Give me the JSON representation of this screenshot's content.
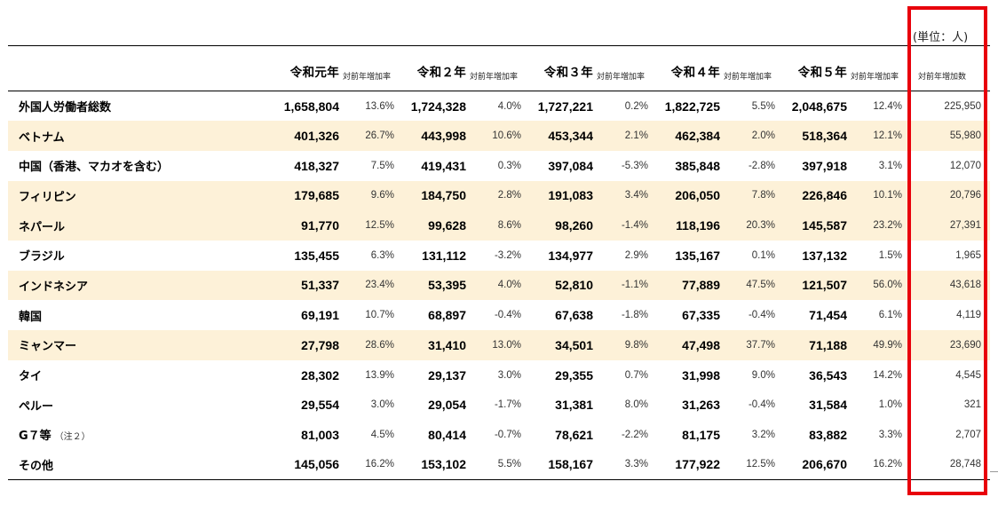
{
  "unit_label": "(単位：人)",
  "header": {
    "years": [
      "令和元年",
      "令和２年",
      "令和３年",
      "令和４年",
      "令和５年"
    ],
    "growth_label": "対前年増加率",
    "increase_label": "対前年増加数"
  },
  "rows": [
    {
      "label": "外国人労働者総数",
      "note": "",
      "values": [
        "1,658,804",
        "13.6%",
        "1,724,328",
        "4.0%",
        "1,727,221",
        "0.2%",
        "1,822,725",
        "5.5%",
        "2,048,675",
        "12.4%",
        "225,950"
      ]
    },
    {
      "label": "ベトナム",
      "note": "",
      "values": [
        "401,326",
        "26.7%",
        "443,998",
        "10.6%",
        "453,344",
        "2.1%",
        "462,384",
        "2.0%",
        "518,364",
        "12.1%",
        "55,980"
      ]
    },
    {
      "label": "中国（香港、マカオを含む）",
      "note": "",
      "values": [
        "418,327",
        "7.5%",
        "419,431",
        "0.3%",
        "397,084",
        "-5.3%",
        "385,848",
        "-2.8%",
        "397,918",
        "3.1%",
        "12,070"
      ]
    },
    {
      "label": "フィリピン",
      "note": "",
      "values": [
        "179,685",
        "9.6%",
        "184,750",
        "2.8%",
        "191,083",
        "3.4%",
        "206,050",
        "7.8%",
        "226,846",
        "10.1%",
        "20,796"
      ]
    },
    {
      "label": "ネパール",
      "note": "",
      "values": [
        "91,770",
        "12.5%",
        "99,628",
        "8.6%",
        "98,260",
        "-1.4%",
        "118,196",
        "20.3%",
        "145,587",
        "23.2%",
        "27,391"
      ]
    },
    {
      "label": "ブラジル",
      "note": "",
      "values": [
        "135,455",
        "6.3%",
        "131,112",
        "-3.2%",
        "134,977",
        "2.9%",
        "135,167",
        "0.1%",
        "137,132",
        "1.5%",
        "1,965"
      ]
    },
    {
      "label": "インドネシア",
      "note": "",
      "values": [
        "51,337",
        "23.4%",
        "53,395",
        "4.0%",
        "52,810",
        "-1.1%",
        "77,889",
        "47.5%",
        "121,507",
        "56.0%",
        "43,618"
      ]
    },
    {
      "label": "韓国",
      "note": "",
      "values": [
        "69,191",
        "10.7%",
        "68,897",
        "-0.4%",
        "67,638",
        "-1.8%",
        "67,335",
        "-0.4%",
        "71,454",
        "6.1%",
        "4,119"
      ]
    },
    {
      "label": "ミャンマー",
      "note": "",
      "values": [
        "27,798",
        "28.6%",
        "31,410",
        "13.0%",
        "34,501",
        "9.8%",
        "47,498",
        "37.7%",
        "71,188",
        "49.9%",
        "23,690"
      ]
    },
    {
      "label": "タイ",
      "note": "",
      "values": [
        "28,302",
        "13.9%",
        "29,137",
        "3.0%",
        "29,355",
        "0.7%",
        "31,998",
        "9.0%",
        "36,543",
        "14.2%",
        "4,545"
      ]
    },
    {
      "label": "ペルー",
      "note": "",
      "values": [
        "29,554",
        "3.0%",
        "29,054",
        "-1.7%",
        "31,381",
        "8.0%",
        "31,263",
        "-0.4%",
        "31,584",
        "1.0%",
        "321"
      ]
    },
    {
      "label": "G７等",
      "note": "（注２）",
      "values": [
        "81,003",
        "4.5%",
        "80,414",
        "-0.7%",
        "78,621",
        "-2.2%",
        "81,175",
        "3.2%",
        "83,882",
        "3.3%",
        "2,707"
      ]
    },
    {
      "label": "その他",
      "note": "",
      "values": [
        "145,056",
        "16.2%",
        "153,102",
        "5.5%",
        "158,167",
        "3.3%",
        "177,922",
        "12.5%",
        "206,670",
        "16.2%",
        "28,748"
      ]
    }
  ],
  "colors": {
    "row_shade": "#fdf1d8",
    "highlight_border": "#e8000b"
  }
}
